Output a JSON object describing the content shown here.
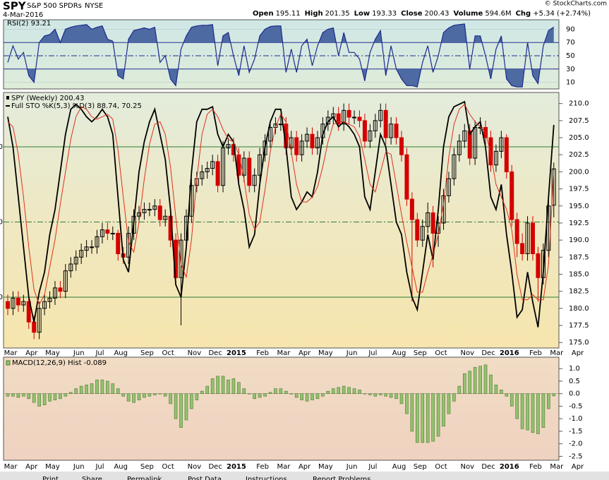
{
  "header": {
    "symbol": "SPY",
    "name": "S&P 500 SPDRs",
    "exchange": "NYSE",
    "date": "4-Mar-2016",
    "source": "© StockCharts.com",
    "quote": [
      {
        "label": "Open",
        "value": "195.11"
      },
      {
        "label": "High",
        "value": "201.35"
      },
      {
        "label": "Low",
        "value": "193.33"
      },
      {
        "label": "Close",
        "value": "200.43"
      },
      {
        "label": "Volume",
        "value": "594.6M"
      },
      {
        "label": "Chg",
        "value": "+5.34 (+2.74%)"
      }
    ]
  },
  "chart_data": [
    {
      "type": "line",
      "title": "RSI(2) 93.21",
      "color": "#1c2a8c",
      "fill_color": "#4d6aa3",
      "values": [
        40,
        65,
        45,
        55,
        20,
        10,
        70,
        80,
        82,
        90,
        70,
        90,
        93,
        95,
        96,
        97,
        90,
        93,
        95,
        75,
        72,
        20,
        15,
        75,
        88,
        90,
        92,
        90,
        93,
        40,
        50,
        15,
        5,
        60,
        80,
        93,
        95,
        96,
        96,
        97,
        35,
        80,
        85,
        50,
        20,
        65,
        25,
        45,
        80,
        90,
        94,
        95,
        95,
        25,
        60,
        25,
        65,
        75,
        35,
        65,
        85,
        90,
        92,
        50,
        85,
        55,
        55,
        45,
        12,
        55,
        75,
        88,
        20,
        65,
        30,
        15,
        5,
        5,
        3,
        40,
        65,
        25,
        50,
        85,
        92,
        96,
        97,
        98,
        30,
        80,
        80,
        50,
        15,
        60,
        80,
        15,
        5,
        3,
        3,
        70,
        20,
        8,
        65,
        88,
        93.21
      ],
      "ylim": [
        0,
        100
      ],
      "yticks": [
        10,
        30,
        50,
        70,
        90
      ]
    },
    {
      "type": "candlestick",
      "title": "SPY (Weekly) 200.43",
      "categories": [
        "Mar",
        null,
        null,
        null,
        "Apr",
        null,
        null,
        null,
        "May",
        null,
        null,
        null,
        null,
        "Jun",
        null,
        null,
        null,
        "Jul",
        null,
        null,
        null,
        "Aug",
        null,
        null,
        null,
        null,
        "Sep",
        null,
        null,
        null,
        "Oct",
        null,
        null,
        null,
        null,
        "Nov",
        null,
        null,
        null,
        "Dec",
        null,
        null,
        null,
        "2015",
        null,
        null,
        null,
        null,
        "Feb",
        null,
        null,
        null,
        "Mar",
        null,
        null,
        null,
        "Apr",
        null,
        null,
        null,
        "May",
        null,
        null,
        null,
        null,
        "Jun",
        null,
        null,
        null,
        "Jul",
        null,
        null,
        null,
        null,
        "Aug",
        null,
        null,
        null,
        "Sep",
        null,
        null,
        null,
        "Oct",
        null,
        null,
        null,
        null,
        "Nov",
        null,
        null,
        null,
        "Dec",
        null,
        null,
        null,
        "2016",
        null,
        null,
        null,
        null,
        "Feb",
        null,
        null,
        null,
        "Mar",
        null,
        null,
        null,
        "Apr"
      ],
      "open": [
        181.0,
        180.0,
        181.5,
        180.5,
        181.0,
        178.0,
        176.5,
        180.0,
        181.0,
        181.5,
        183.0,
        182.5,
        185.5,
        186.5,
        187.5,
        188.5,
        189.0,
        189.0,
        190.5,
        191.5,
        191.0,
        191.0,
        188.0,
        187.5,
        191.0,
        193.5,
        194.0,
        194.5,
        194.5,
        195.0,
        193.0,
        193.5,
        190.0,
        184.5,
        190.0,
        193.5,
        198.0,
        199.0,
        200.0,
        200.5,
        201.5,
        198.0,
        203.5,
        204.0,
        202.5,
        199.5,
        202.0,
        198.0,
        199.5,
        202.5,
        204.5,
        206.5,
        207.0,
        207.0,
        203.5,
        205.0,
        202.5,
        204.5,
        205.5,
        203.5,
        205.0,
        207.0,
        208.0,
        208.5,
        207.0,
        209.0,
        208.0,
        208.0,
        207.5,
        204.5,
        206.0,
        207.5,
        209.0,
        205.0,
        207.0,
        205.0,
        202.5,
        196.0,
        193.0,
        190.0,
        192.0,
        194.0,
        191.0,
        192.5,
        196.5,
        199.0,
        202.5,
        204.5,
        206.0,
        202.0,
        206.5,
        206.5,
        205.0,
        201.0,
        203.0,
        205.0,
        200.0,
        193.0,
        189.5,
        188.0,
        192.5,
        188.0,
        184.5,
        188.5,
        195.11,
        null,
        null,
        null,
        null
      ],
      "high": [
        182.0,
        182.5,
        182.5,
        182.0,
        181.5,
        179.0,
        181.0,
        182.0,
        182.5,
        184.0,
        184.0,
        186.5,
        187.5,
        188.5,
        189.5,
        190.0,
        190.0,
        191.5,
        192.5,
        192.5,
        192.0,
        191.5,
        189.0,
        192.0,
        194.5,
        195.0,
        195.5,
        195.5,
        196.0,
        196.0,
        194.5,
        194.5,
        191.0,
        191.0,
        194.5,
        199.0,
        200.0,
        201.0,
        201.5,
        202.5,
        202.5,
        204.5,
        205.0,
        205.0,
        203.5,
        203.0,
        203.0,
        200.5,
        203.5,
        205.5,
        207.5,
        208.0,
        208.5,
        208.0,
        206.0,
        206.0,
        205.5,
        206.5,
        206.5,
        206.0,
        208.0,
        209.0,
        209.5,
        209.5,
        210.0,
        210.0,
        209.0,
        209.0,
        208.5,
        207.0,
        208.5,
        210.0,
        210.0,
        208.0,
        208.0,
        206.0,
        203.5,
        197.0,
        194.0,
        193.0,
        195.5,
        195.0,
        193.5,
        197.5,
        200.0,
        203.5,
        205.5,
        207.0,
        207.0,
        207.5,
        208.0,
        207.5,
        206.0,
        204.0,
        206.0,
        205.5,
        201.0,
        194.0,
        191.0,
        193.5,
        193.5,
        189.0,
        189.5,
        196.0,
        201.35,
        null,
        null,
        null,
        null
      ],
      "low": [
        179.0,
        179.0,
        179.5,
        179.5,
        177.0,
        175.5,
        175.5,
        179.0,
        180.0,
        180.5,
        181.5,
        181.5,
        184.5,
        185.5,
        186.5,
        187.5,
        188.0,
        188.0,
        189.5,
        190.0,
        190.0,
        187.0,
        186.5,
        186.5,
        190.0,
        192.5,
        193.0,
        193.5,
        193.5,
        192.0,
        192.0,
        189.0,
        183.5,
        177.5,
        189.0,
        192.5,
        197.0,
        198.0,
        199.0,
        199.5,
        197.0,
        197.0,
        202.5,
        201.5,
        198.5,
        198.5,
        197.0,
        197.0,
        198.5,
        201.5,
        203.5,
        205.5,
        206.0,
        202.5,
        202.5,
        201.5,
        201.5,
        203.5,
        202.5,
        202.5,
        204.0,
        206.0,
        207.0,
        206.0,
        206.0,
        207.0,
        207.0,
        206.5,
        203.5,
        203.5,
        205.0,
        206.5,
        204.0,
        204.0,
        204.0,
        201.5,
        195.0,
        181.0,
        189.0,
        189.0,
        191.0,
        186.0,
        189.0,
        191.5,
        195.5,
        198.0,
        201.5,
        203.5,
        201.0,
        201.0,
        205.5,
        204.0,
        200.0,
        200.0,
        202.0,
        199.0,
        192.0,
        187.5,
        187.0,
        187.0,
        187.0,
        181.0,
        183.5,
        187.5,
        193.33,
        null,
        null,
        null,
        null
      ],
      "close": [
        180.0,
        181.5,
        180.5,
        181.0,
        178.0,
        176.5,
        180.0,
        181.0,
        181.5,
        183.0,
        182.5,
        185.5,
        186.5,
        187.5,
        188.5,
        189.0,
        189.0,
        190.5,
        191.5,
        191.0,
        191.0,
        188.0,
        187.5,
        191.0,
        193.5,
        194.0,
        194.5,
        194.5,
        195.0,
        193.0,
        193.5,
        190.0,
        184.5,
        190.0,
        193.5,
        198.0,
        199.0,
        200.0,
        200.5,
        201.5,
        198.0,
        203.5,
        204.0,
        202.5,
        199.5,
        202.0,
        198.0,
        199.5,
        202.5,
        204.5,
        206.5,
        207.0,
        207.0,
        203.5,
        205.0,
        202.5,
        204.5,
        205.5,
        203.5,
        205.0,
        207.0,
        208.0,
        208.5,
        207.0,
        209.0,
        208.0,
        208.0,
        207.5,
        204.5,
        206.0,
        207.5,
        209.0,
        205.0,
        207.0,
        205.0,
        202.5,
        196.0,
        193.0,
        190.0,
        192.0,
        194.0,
        191.0,
        192.5,
        196.5,
        199.0,
        202.5,
        204.5,
        206.0,
        202.0,
        206.5,
        206.5,
        205.0,
        201.0,
        203.0,
        205.0,
        200.0,
        193.0,
        189.5,
        188.0,
        192.5,
        188.0,
        184.5,
        188.5,
        195.0,
        200.43,
        null,
        null,
        null,
        null
      ],
      "up_color": "#000000",
      "down_color": "#d40000",
      "ylim": [
        174.3,
        211.0
      ],
      "yticks": [
        {
          "value": 175,
          "label": "175.0"
        },
        177.5,
        {
          "value": 180,
          "label": "180.0"
        },
        182.5,
        {
          "value": 185,
          "label": "185.0"
        },
        187.5,
        {
          "value": 190,
          "label": "190.0"
        },
        192.5,
        {
          "value": 195,
          "label": "195.0"
        },
        197.5,
        {
          "value": 200,
          "label": "200.0"
        },
        202.5,
        {
          "value": 205,
          "label": "205.0"
        },
        207.5,
        {
          "value": 210,
          "label": "210.0"
        }
      ],
      "overlay": {
        "type": "line",
        "title": "Full STO %K(5,3) %D(3) 88.74, 70.25",
        "ylim": [
          0,
          100
        ],
        "yticks": [
          20,
          50,
          80
        ],
        "grid_color": "#2e7d32",
        "series": [
          {
            "name": "%K",
            "color": "#000000",
            "values": [
              92,
              80,
              60,
              40,
              20,
              10,
              22,
              30,
              45,
              55,
              70,
              85,
              95,
              97,
              95,
              92,
              90,
              92,
              95,
              92,
              85,
              60,
              35,
              30,
              50,
              70,
              82,
              90,
              95,
              85,
              75,
              55,
              25,
              20,
              40,
              70,
              90,
              95,
              95,
              96,
              85,
              80,
              85,
              82,
              65,
              55,
              40,
              45,
              65,
              80,
              90,
              95,
              95,
              80,
              60,
              55,
              58,
              62,
              60,
              70,
              85,
              90,
              92,
              88,
              90,
              88,
              85,
              80,
              60,
              55,
              70,
              85,
              80,
              65,
              50,
              45,
              30,
              20,
              15,
              30,
              45,
              35,
              55,
              80,
              92,
              96,
              97,
              98,
              85,
              88,
              90,
              80,
              60,
              55,
              65,
              45,
              30,
              12,
              15,
              30,
              18,
              8,
              30,
              60,
              88.74,
              null,
              null,
              null,
              null
            ]
          },
          {
            "name": "%D",
            "color": "#e0301e",
            "values": [
              90,
              88,
              77,
              60,
              40,
              23,
              17,
              21,
              32,
              43,
              57,
              70,
              83,
              92,
              96,
              95,
              92,
              91,
              92,
              93,
              91,
              79,
              60,
              42,
              38,
              50,
              67,
              81,
              89,
              90,
              85,
              72,
              52,
              33,
              28,
              43,
              67,
              85,
              93,
              95,
              92,
              87,
              83,
              82,
              77,
              67,
              53,
              47,
              50,
              63,
              78,
              88,
              93,
              90,
              78,
              65,
              58,
              58,
              60,
              64,
              72,
              82,
              89,
              90,
              90,
              89,
              88,
              84,
              75,
              65,
              62,
              70,
              78,
              77,
              65,
              53,
              42,
              32,
              22,
              22,
              30,
              37,
              45,
              57,
              76,
              89,
              95,
              97,
              93,
              90,
              88,
              86,
              77,
              65,
              60,
              55,
              47,
              29,
              19,
              19,
              21,
              19,
              19,
              33,
              70.25,
              null,
              null,
              null,
              null
            ]
          }
        ]
      }
    },
    {
      "type": "bar",
      "title": "MACD(12,26,9) Hist -0.089",
      "categories": [
        "Mar",
        null,
        null,
        null,
        "Apr",
        null,
        null,
        null,
        "May",
        null,
        null,
        null,
        null,
        "Jun",
        null,
        null,
        null,
        "Jul",
        null,
        null,
        null,
        "Aug",
        null,
        null,
        null,
        null,
        "Sep",
        null,
        null,
        null,
        "Oct",
        null,
        null,
        null,
        null,
        "Nov",
        null,
        null,
        null,
        "Dec",
        null,
        null,
        null,
        "2015",
        null,
        null,
        null,
        null,
        "Feb",
        null,
        null,
        null,
        "Mar",
        null,
        null,
        null,
        "Apr",
        null,
        null,
        null,
        "May",
        null,
        null,
        null,
        null,
        "Jun",
        null,
        null,
        null,
        "Jul",
        null,
        null,
        null,
        null,
        "Aug",
        null,
        null,
        null,
        "Sep",
        null,
        null,
        null,
        "Oct",
        null,
        null,
        null,
        null,
        "Nov",
        null,
        null,
        null,
        "Dec",
        null,
        null,
        null,
        "2016",
        null,
        null,
        null,
        null,
        "Feb",
        null,
        null,
        null,
        "Mar",
        null,
        null,
        null,
        "Apr"
      ],
      "values": [
        -0.1,
        -0.1,
        -0.15,
        -0.1,
        -0.2,
        -0.35,
        -0.5,
        -0.45,
        -0.3,
        -0.25,
        -0.2,
        -0.1,
        0.05,
        0.2,
        0.3,
        0.35,
        0.4,
        0.55,
        0.55,
        0.5,
        0.4,
        0.2,
        -0.1,
        -0.3,
        -0.35,
        -0.25,
        -0.15,
        -0.1,
        -0.05,
        0.0,
        -0.1,
        -0.4,
        -1.0,
        -1.35,
        -1.05,
        -0.6,
        -0.25,
        0.1,
        0.3,
        0.6,
        0.7,
        0.7,
        0.55,
        0.6,
        0.45,
        0.2,
        0.0,
        -0.2,
        -0.15,
        -0.1,
        0.05,
        0.2,
        0.2,
        0.1,
        0.0,
        -0.15,
        -0.25,
        -0.3,
        -0.25,
        -0.2,
        -0.1,
        0.1,
        0.2,
        0.25,
        0.3,
        0.25,
        0.2,
        0.15,
        0.0,
        -0.05,
        -0.1,
        -0.05,
        -0.1,
        -0.15,
        -0.2,
        -0.4,
        -0.8,
        -1.5,
        -1.95,
        -1.95,
        -1.95,
        -1.9,
        -1.7,
        -1.3,
        -0.8,
        -0.3,
        0.3,
        0.8,
        0.9,
        1.05,
        1.1,
        1.15,
        0.75,
        0.35,
        0.15,
        -0.1,
        -0.5,
        -1.0,
        -1.4,
        -1.45,
        -1.55,
        -1.6,
        -1.35,
        -0.6,
        -0.089,
        null,
        null,
        null,
        null
      ],
      "color": "#93c26f",
      "ylim": [
        -2.6,
        1.4
      ],
      "yticks": [
        {
          "value": 1,
          "label": "1.0"
        },
        0.5,
        {
          "value": 0,
          "label": "0.0"
        },
        -0.5,
        {
          "value": -1,
          "label": "-1.0"
        },
        -1.5,
        {
          "value": -2,
          "label": "-2.0"
        },
        -2.5
      ]
    }
  ],
  "toolbar": [
    "Print",
    "Share",
    "Permalink",
    "Post Data",
    "Instructions",
    "Report Problems"
  ]
}
